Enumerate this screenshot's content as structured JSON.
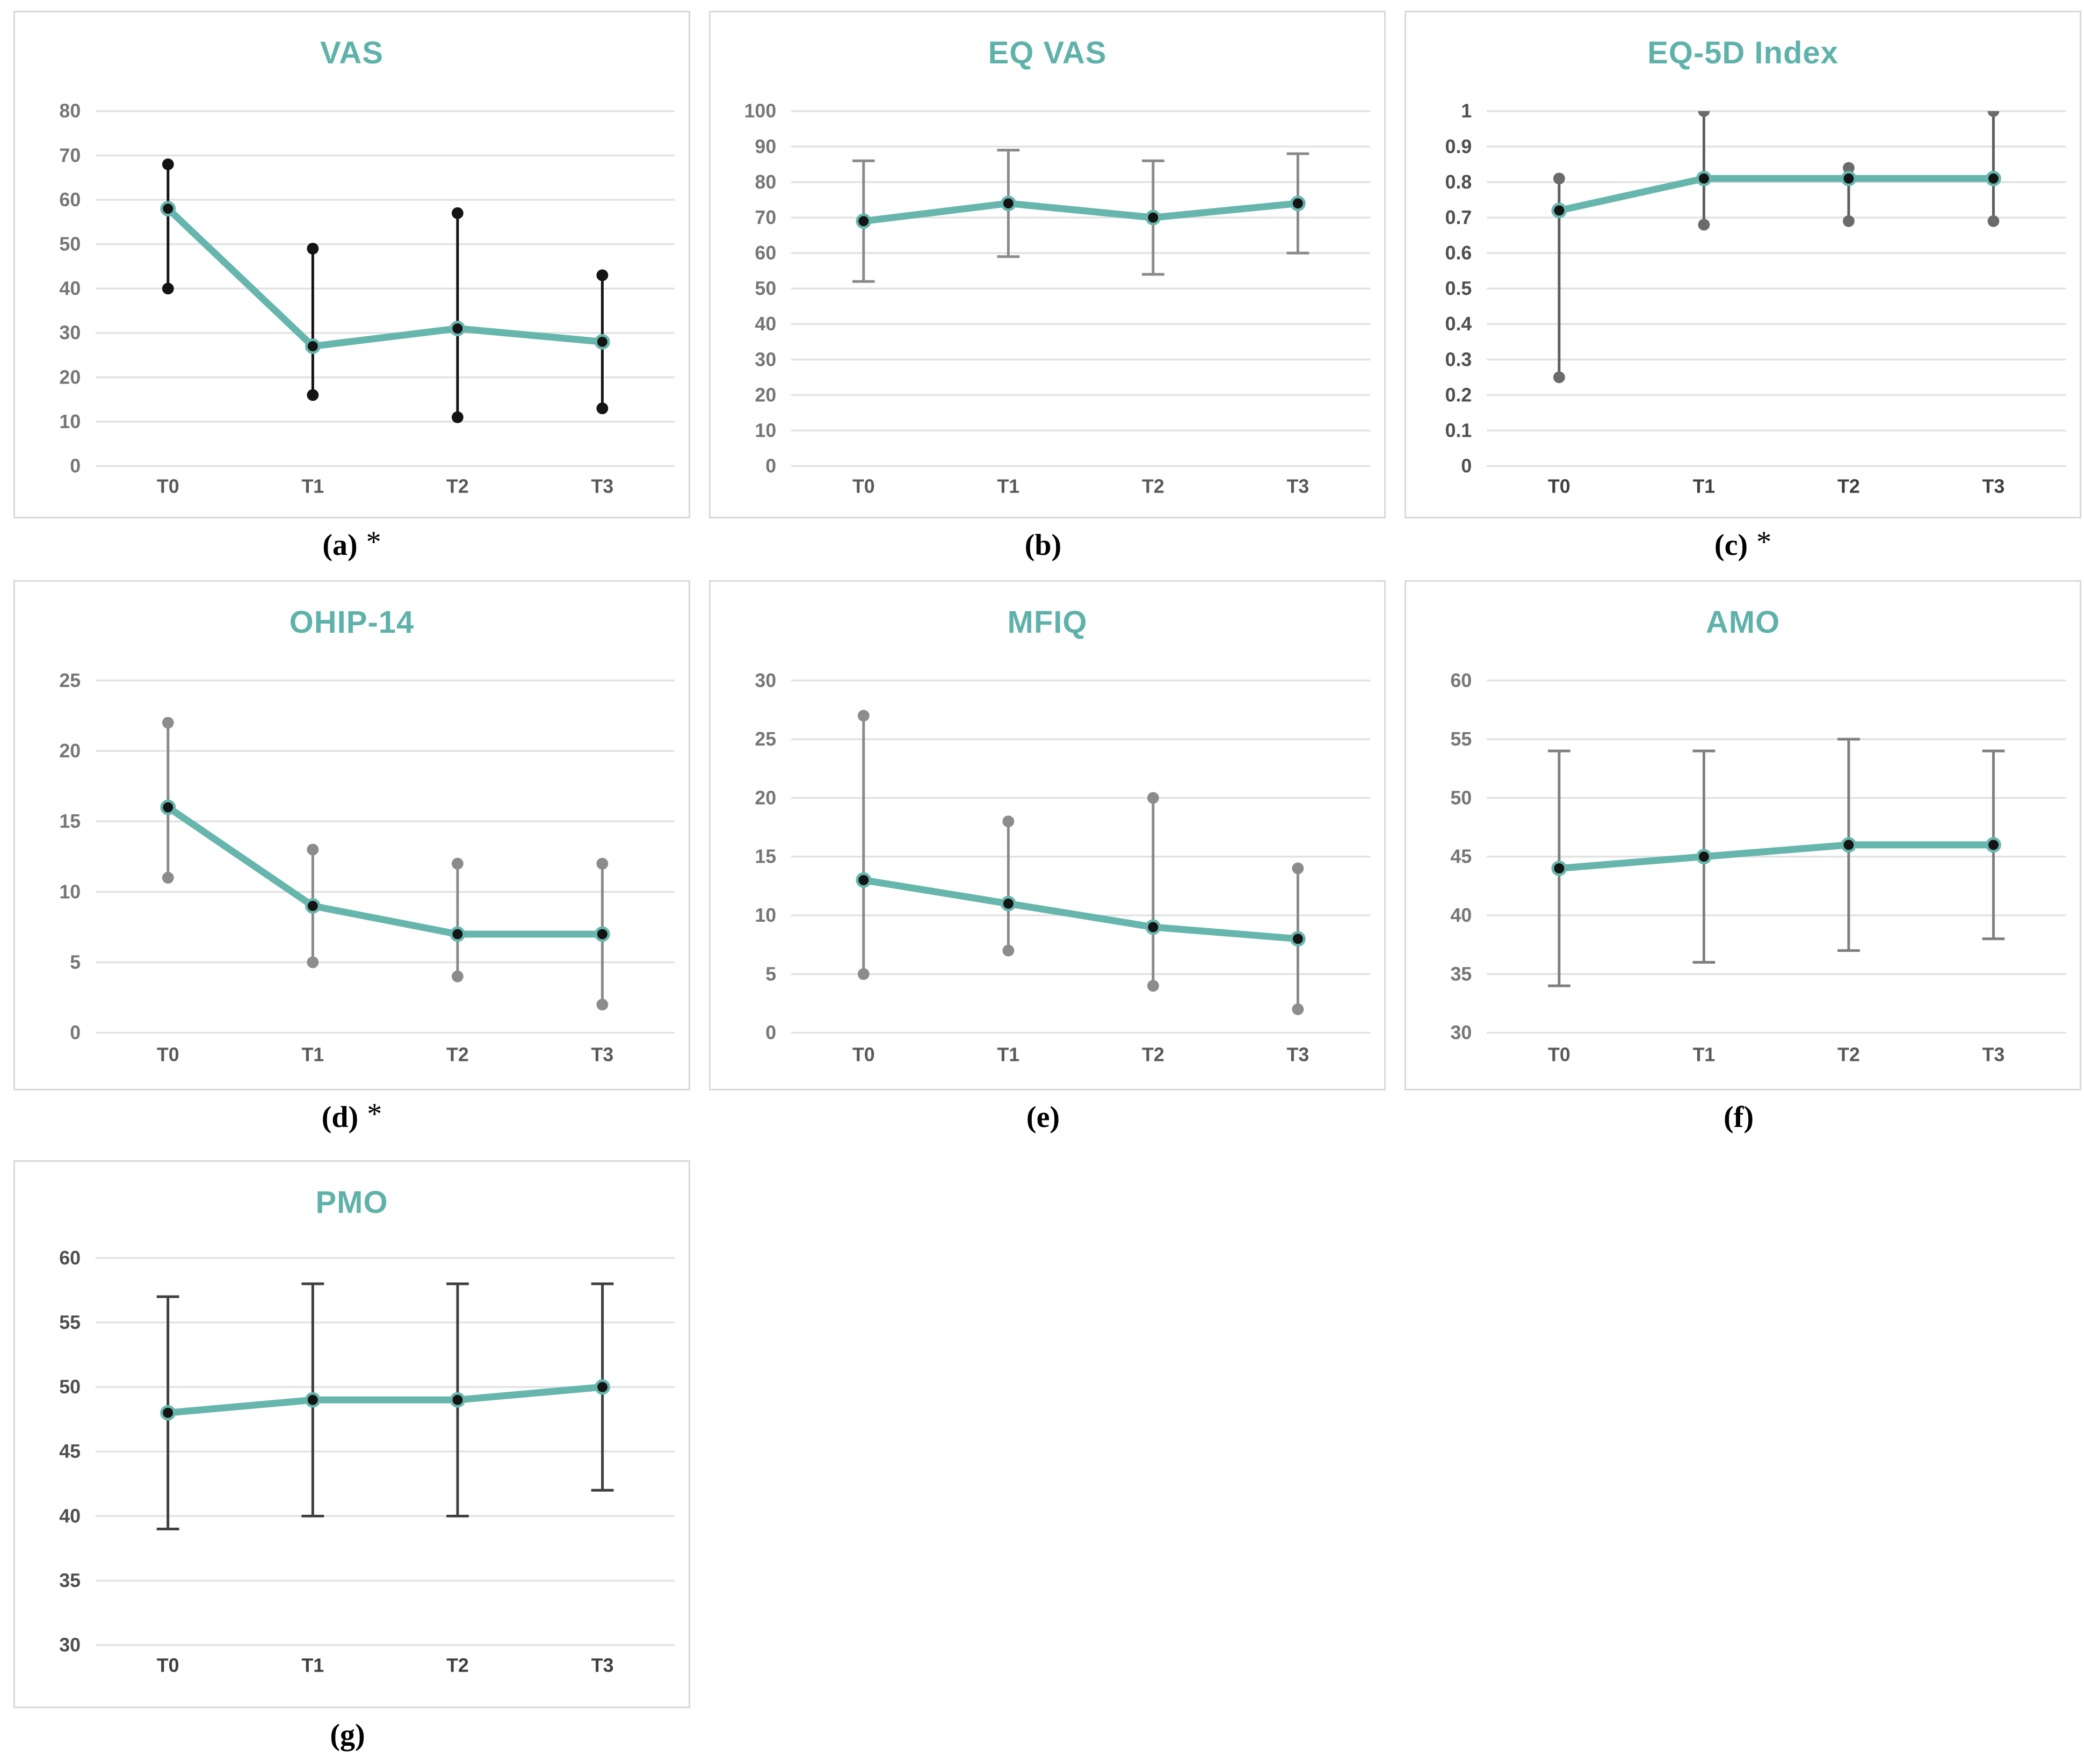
{
  "styles": {
    "accent_teal": "#67B6AE",
    "title_teal": "#5FB2AA",
    "grid_color": "#E2E2E2",
    "panel_border": "#D9D9D9",
    "mean_marker_color": "#141414"
  },
  "chart_data": [
    {
      "key": "vas",
      "type": "line",
      "title": "VAS",
      "caption": "(a)",
      "caption_star": "*",
      "categories": [
        "T0",
        "T1",
        "T2",
        "T3"
      ],
      "series": [
        {
          "name": "mean",
          "values": [
            58,
            27,
            31,
            28
          ]
        }
      ],
      "error_upper": [
        68,
        49,
        57,
        43
      ],
      "error_lower": [
        40,
        16,
        11,
        13
      ],
      "ylim": [
        0,
        80
      ],
      "ytick_step": 10,
      "ytick_labels": [
        "0",
        "10",
        "20",
        "30",
        "40",
        "50",
        "60",
        "70",
        "80"
      ],
      "grid": true,
      "legend": "none",
      "style": {
        "line_color": "#67B6AE",
        "error_style": "dot",
        "error_color": "#141414",
        "stem_color": "#141414",
        "tick_color": "#767676",
        "xlabel_color": "#595959"
      }
    },
    {
      "key": "eq-vas",
      "type": "line",
      "title": "EQ VAS",
      "caption": "(b)",
      "caption_star": "",
      "categories": [
        "T0",
        "T1",
        "T2",
        "T3"
      ],
      "series": [
        {
          "name": "mean",
          "values": [
            69,
            74,
            70,
            74
          ]
        }
      ],
      "error_upper": [
        86,
        89,
        86,
        88
      ],
      "error_lower": [
        52,
        59,
        54,
        60
      ],
      "ylim": [
        0,
        100
      ],
      "ytick_step": 10,
      "ytick_labels": [
        "0",
        "10",
        "20",
        "30",
        "40",
        "50",
        "60",
        "70",
        "80",
        "90",
        "100"
      ],
      "grid": true,
      "legend": "none",
      "style": {
        "line_color": "#67B6AE",
        "error_style": "cap",
        "error_color": "#8A8A8A",
        "stem_color": "#8A8A8A",
        "tick_color": "#767676",
        "xlabel_color": "#595959"
      }
    },
    {
      "key": "eq5d-index",
      "type": "line",
      "title": "EQ-5D Index",
      "caption": "(c)",
      "caption_star": "*",
      "categories": [
        "T0",
        "T1",
        "T2",
        "T3"
      ],
      "series": [
        {
          "name": "mean",
          "values": [
            0.72,
            0.81,
            0.81,
            0.81
          ]
        }
      ],
      "error_upper": [
        0.81,
        1,
        0.84,
        1
      ],
      "error_lower": [
        0.25,
        0.68,
        0.69,
        0.69
      ],
      "ylim": [
        0,
        1
      ],
      "ytick_step": 0.1,
      "ytick_labels": [
        "0",
        "0.1",
        "0.2",
        "0.3",
        "0.4",
        "0.5",
        "0.6",
        "0.7",
        "0.8",
        "0.9",
        "1"
      ],
      "grid": true,
      "legend": "none",
      "style": {
        "line_color": "#67B6AE",
        "error_style": "dot",
        "error_color": "#6B6B6B",
        "stem_color": "#5E5E5E",
        "tick_color": "#4F4F4F",
        "xlabel_color": "#3F3F3F"
      }
    },
    {
      "key": "ohip-14",
      "type": "line",
      "title": "OHIP-14",
      "caption": "(d)",
      "caption_star": "*",
      "categories": [
        "T0",
        "T1",
        "T2",
        "T3"
      ],
      "series": [
        {
          "name": "mean",
          "values": [
            16,
            9,
            7,
            7
          ]
        }
      ],
      "error_upper": [
        22,
        13,
        12,
        12
      ],
      "error_lower": [
        11,
        5,
        4,
        2
      ],
      "ylim": [
        0,
        25
      ],
      "ytick_step": 5,
      "ytick_labels": [
        "0",
        "5",
        "10",
        "15",
        "20",
        "25"
      ],
      "grid": true,
      "legend": "none",
      "style": {
        "line_color": "#67B6AE",
        "error_style": "dot",
        "error_color": "#8C8C8C",
        "stem_color": "#8A8A8A",
        "tick_color": "#767676",
        "xlabel_color": "#595959"
      }
    },
    {
      "key": "mfiq",
      "type": "line",
      "title": "MFIQ",
      "caption": "(e)",
      "caption_star": "",
      "categories": [
        "T0",
        "T1",
        "T2",
        "T3"
      ],
      "series": [
        {
          "name": "mean",
          "values": [
            13,
            11,
            9,
            8
          ]
        }
      ],
      "error_upper": [
        27,
        18,
        20,
        14
      ],
      "error_lower": [
        5,
        7,
        4,
        2
      ],
      "ylim": [
        0,
        30
      ],
      "ytick_step": 5,
      "ytick_labels": [
        "0",
        "5",
        "10",
        "15",
        "20",
        "25",
        "30"
      ],
      "grid": true,
      "legend": "none",
      "style": {
        "line_color": "#67B6AE",
        "error_style": "dot",
        "error_color": "#8C8C8C",
        "stem_color": "#8A8A8A",
        "tick_color": "#767676",
        "xlabel_color": "#595959"
      }
    },
    {
      "key": "amo",
      "type": "line",
      "title": "AMO",
      "caption": "(f)",
      "caption_star": "",
      "categories": [
        "T0",
        "T1",
        "T2",
        "T3"
      ],
      "series": [
        {
          "name": "mean",
          "values": [
            44,
            45,
            46,
            46
          ]
        }
      ],
      "error_upper": [
        54,
        54,
        55,
        54
      ],
      "error_lower": [
        34,
        36,
        37,
        38
      ],
      "ylim": [
        30,
        60
      ],
      "ytick_step": 5,
      "ytick_labels": [
        "30",
        "35",
        "40",
        "45",
        "50",
        "55",
        "60"
      ],
      "grid": true,
      "legend": "none",
      "style": {
        "line_color": "#67B6AE",
        "error_style": "cap",
        "error_color": "#7F7F7F",
        "stem_color": "#7F7F7F",
        "tick_color": "#767676",
        "xlabel_color": "#595959"
      }
    },
    {
      "key": "pmo",
      "type": "line",
      "title": "PMO",
      "caption": "(g)",
      "caption_star": "",
      "categories": [
        "T0",
        "T1",
        "T2",
        "T3"
      ],
      "series": [
        {
          "name": "mean",
          "values": [
            48,
            49,
            49,
            50
          ]
        }
      ],
      "error_upper": [
        57,
        58,
        58,
        58
      ],
      "error_lower": [
        39,
        40,
        40,
        42
      ],
      "ylim": [
        30,
        60
      ],
      "ytick_step": 5,
      "ytick_labels": [
        "30",
        "35",
        "40",
        "45",
        "50",
        "55",
        "60"
      ],
      "grid": true,
      "legend": "none",
      "style": {
        "line_color": "#67B6AE",
        "error_style": "cap",
        "error_color": "#3F3F3F",
        "stem_color": "#3F3F3F",
        "tick_color": "#4F4F4F",
        "xlabel_color": "#3F3F3F"
      }
    }
  ]
}
